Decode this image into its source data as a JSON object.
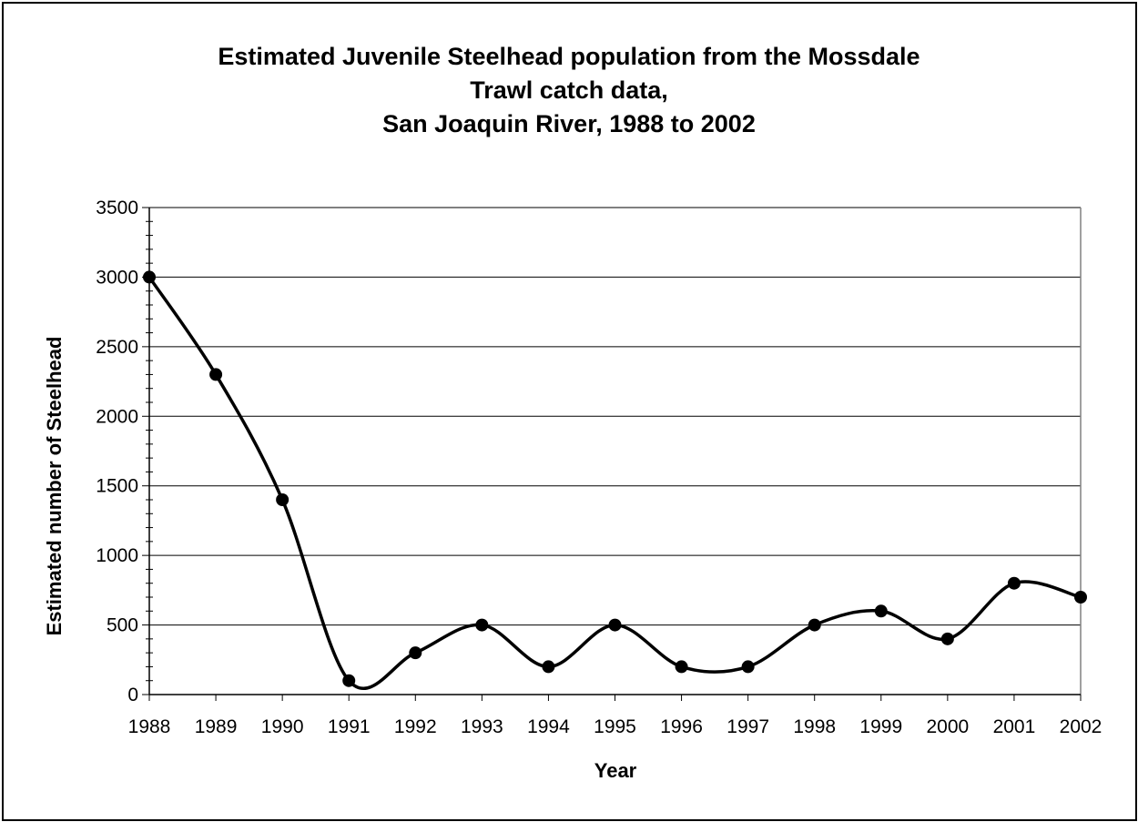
{
  "chart_data": {
    "type": "line",
    "title_lines": [
      "Estimated Juvenile Steelhead population from the Mossdale",
      "Trawl catch data,",
      "San Joaquin River, 1988 to 2002"
    ],
    "xlabel": "Year",
    "ylabel": "Estimated number of Steelhead",
    "categories": [
      "1988",
      "1989",
      "1990",
      "1991",
      "1992",
      "1993",
      "1994",
      "1995",
      "1996",
      "1997",
      "1998",
      "1999",
      "2000",
      "2001",
      "2002"
    ],
    "series": [
      {
        "values": [
          3000,
          2300,
          1400,
          100,
          300,
          500,
          200,
          500,
          200,
          200,
          500,
          600,
          400,
          800,
          700
        ]
      }
    ],
    "ylim": [
      0,
      3500
    ],
    "yticks": [
      0,
      500,
      1000,
      1500,
      2000,
      2500,
      3000,
      3500
    ],
    "y_minor_step": 100,
    "grid": true,
    "smoothed": true,
    "marker": "circle",
    "line_color": "#000000",
    "grid_color": "#000000",
    "axis_color": "#808080"
  }
}
